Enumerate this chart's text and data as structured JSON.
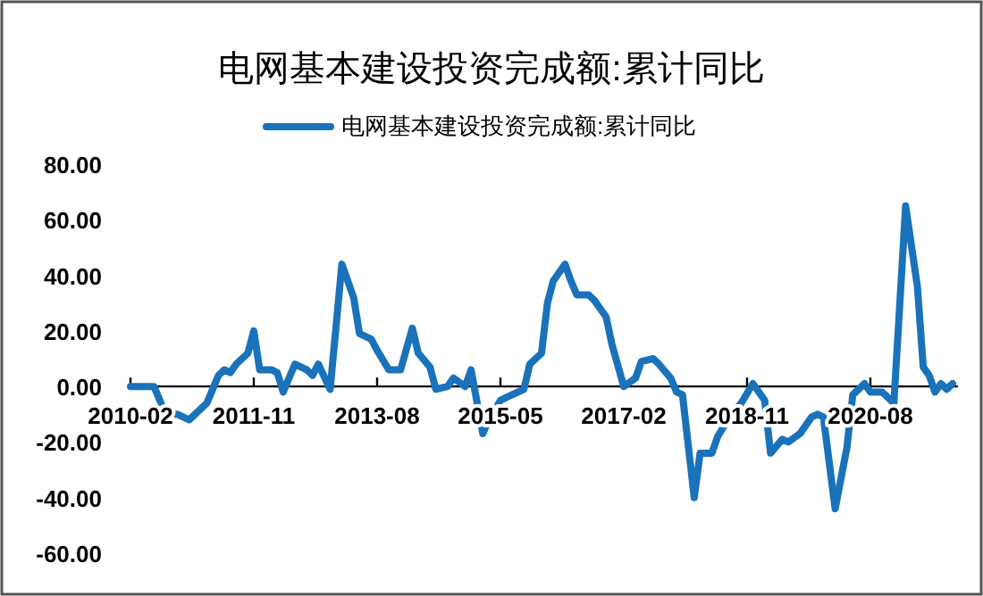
{
  "chart_data": {
    "type": "line",
    "title": "电网基本建设投资完成额:累计同比",
    "x": [
      "2010-02",
      "2010-06",
      "2010-08",
      "2010-10",
      "2010-12",
      "2011-03",
      "2011-05",
      "2011-06",
      "2011-07",
      "2011-08",
      "2011-10",
      "2011-11",
      "2011-12",
      "2012-02",
      "2012-03",
      "2012-04",
      "2012-06",
      "2012-08",
      "2012-09",
      "2012-10",
      "2012-12",
      "2013-02",
      "2013-04",
      "2013-05",
      "2013-07",
      "2013-08",
      "2013-10",
      "2013-12",
      "2014-02",
      "2014-03",
      "2014-05",
      "2014-06",
      "2014-08",
      "2014-09",
      "2014-11",
      "2014-12",
      "2015-02",
      "2015-03",
      "2015-05",
      "2015-07",
      "2015-09",
      "2015-10",
      "2015-12",
      "2016-01",
      "2016-02",
      "2016-04",
      "2016-05",
      "2016-06",
      "2016-08",
      "2016-09",
      "2016-11",
      "2016-12",
      "2017-02",
      "2017-04",
      "2017-05",
      "2017-07",
      "2017-08",
      "2017-10",
      "2017-11",
      "2017-12",
      "2018-02",
      "2018-03",
      "2018-05",
      "2018-06",
      "2018-08",
      "2018-10",
      "2018-12",
      "2019-02",
      "2019-03",
      "2019-05",
      "2019-06",
      "2019-08",
      "2019-10",
      "2019-11",
      "2019-12",
      "2020-02",
      "2020-04",
      "2020-05",
      "2020-07",
      "2020-08",
      "2020-10",
      "2020-12",
      "2021-02",
      "2021-04",
      "2021-05",
      "2021-06",
      "2021-07",
      "2021-08",
      "2021-09",
      "2021-10"
    ],
    "series": [
      {
        "name": "电网基本建设投资完成额:累计同比",
        "color": "#1a72bb",
        "values": [
          0,
          0,
          -10,
          -10,
          -12,
          -6,
          4,
          6,
          5,
          8,
          12,
          20,
          6,
          6,
          5,
          -2,
          8,
          6,
          4,
          8,
          -1,
          44,
          32,
          19,
          17,
          13,
          6,
          6,
          21,
          12,
          7,
          -1,
          0,
          3,
          0,
          6,
          -17,
          -12,
          -5,
          -3,
          -1,
          8,
          12,
          30,
          38,
          44,
          38,
          33,
          33,
          31,
          25,
          15,
          0,
          3,
          9,
          10,
          8,
          3,
          -2,
          -3,
          -40,
          -24,
          -24,
          -18,
          -11,
          -6,
          1,
          -5,
          -24,
          -19,
          -20,
          -17,
          -11,
          -10,
          -11,
          -44,
          -22,
          -3,
          1,
          -2,
          -2,
          -6,
          65,
          36,
          7,
          4,
          -2,
          1,
          -1,
          1
        ]
      }
    ],
    "xlim": [
      "2010-02",
      "2021-10"
    ],
    "xticks": [
      "2010-02",
      "2011-11",
      "2013-08",
      "2015-05",
      "2017-02",
      "2018-11",
      "2020-08"
    ],
    "ylim": [
      -60,
      80
    ],
    "yticks": [
      {
        "value": -60,
        "label": "-60.00"
      },
      {
        "value": -40,
        "label": "-40.00"
      },
      {
        "value": -20,
        "label": "-20.00"
      },
      {
        "value": 0,
        "label": "0.00"
      },
      {
        "value": 20,
        "label": "20.00"
      },
      {
        "value": 40,
        "label": "40.00"
      },
      {
        "value": 60,
        "label": "60.00"
      },
      {
        "value": 80,
        "label": "80.00"
      }
    ],
    "legend": "top"
  }
}
